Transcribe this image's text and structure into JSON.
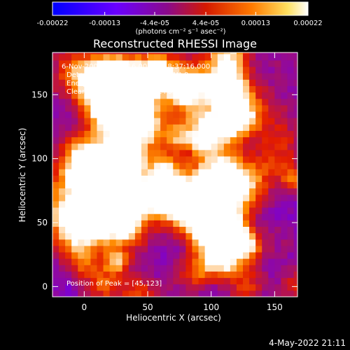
{
  "chart_data": {
    "type": "heatmap",
    "title": "Reconstructed RHESSI Image",
    "xlabel": "Heliocentric X (arcsec)",
    "ylabel": "Heliocentric Y (arcsec)",
    "xlim": [
      -25,
      168
    ],
    "ylim": [
      -8,
      183
    ],
    "x_ticks": [
      0,
      50,
      100,
      150
    ],
    "y_ticks": [
      0,
      50,
      100,
      150
    ],
    "grid": false,
    "colorbar": {
      "position": "top",
      "tick_values": [
        -0.00022,
        -0.00013,
        -4.4e-05,
        4.4e-05,
        0.00013,
        0.00022
      ],
      "tick_labels": [
        "-0.00022",
        "-0.00013",
        "-4.4e-05",
        "4.4e-05",
        "0.00013",
        "0.00022"
      ],
      "units_label": "(photons cm⁻² s⁻¹ asec⁻²)",
      "colors": [
        "#0000ff",
        "#7a00d8",
        "#a31070",
        "#e21b00",
        "#ff8a00",
        "#ffffff"
      ]
    },
    "peak": {
      "x": 45,
      "y": 123
    },
    "info_lines": [
      "6-Nov-2004 18:31:16.000 to 18:37:16.000",
      "Detectors: 3F 4F 5F 6F 7F 8F, Att 0",
      "Energy Range: 25.0 - 50.0 keV",
      "Clean    Total counts: 6.30E+03"
    ],
    "peak_label": "Position of Peak = [45,123]"
  },
  "timestamp": "4-May-2022 21:11"
}
